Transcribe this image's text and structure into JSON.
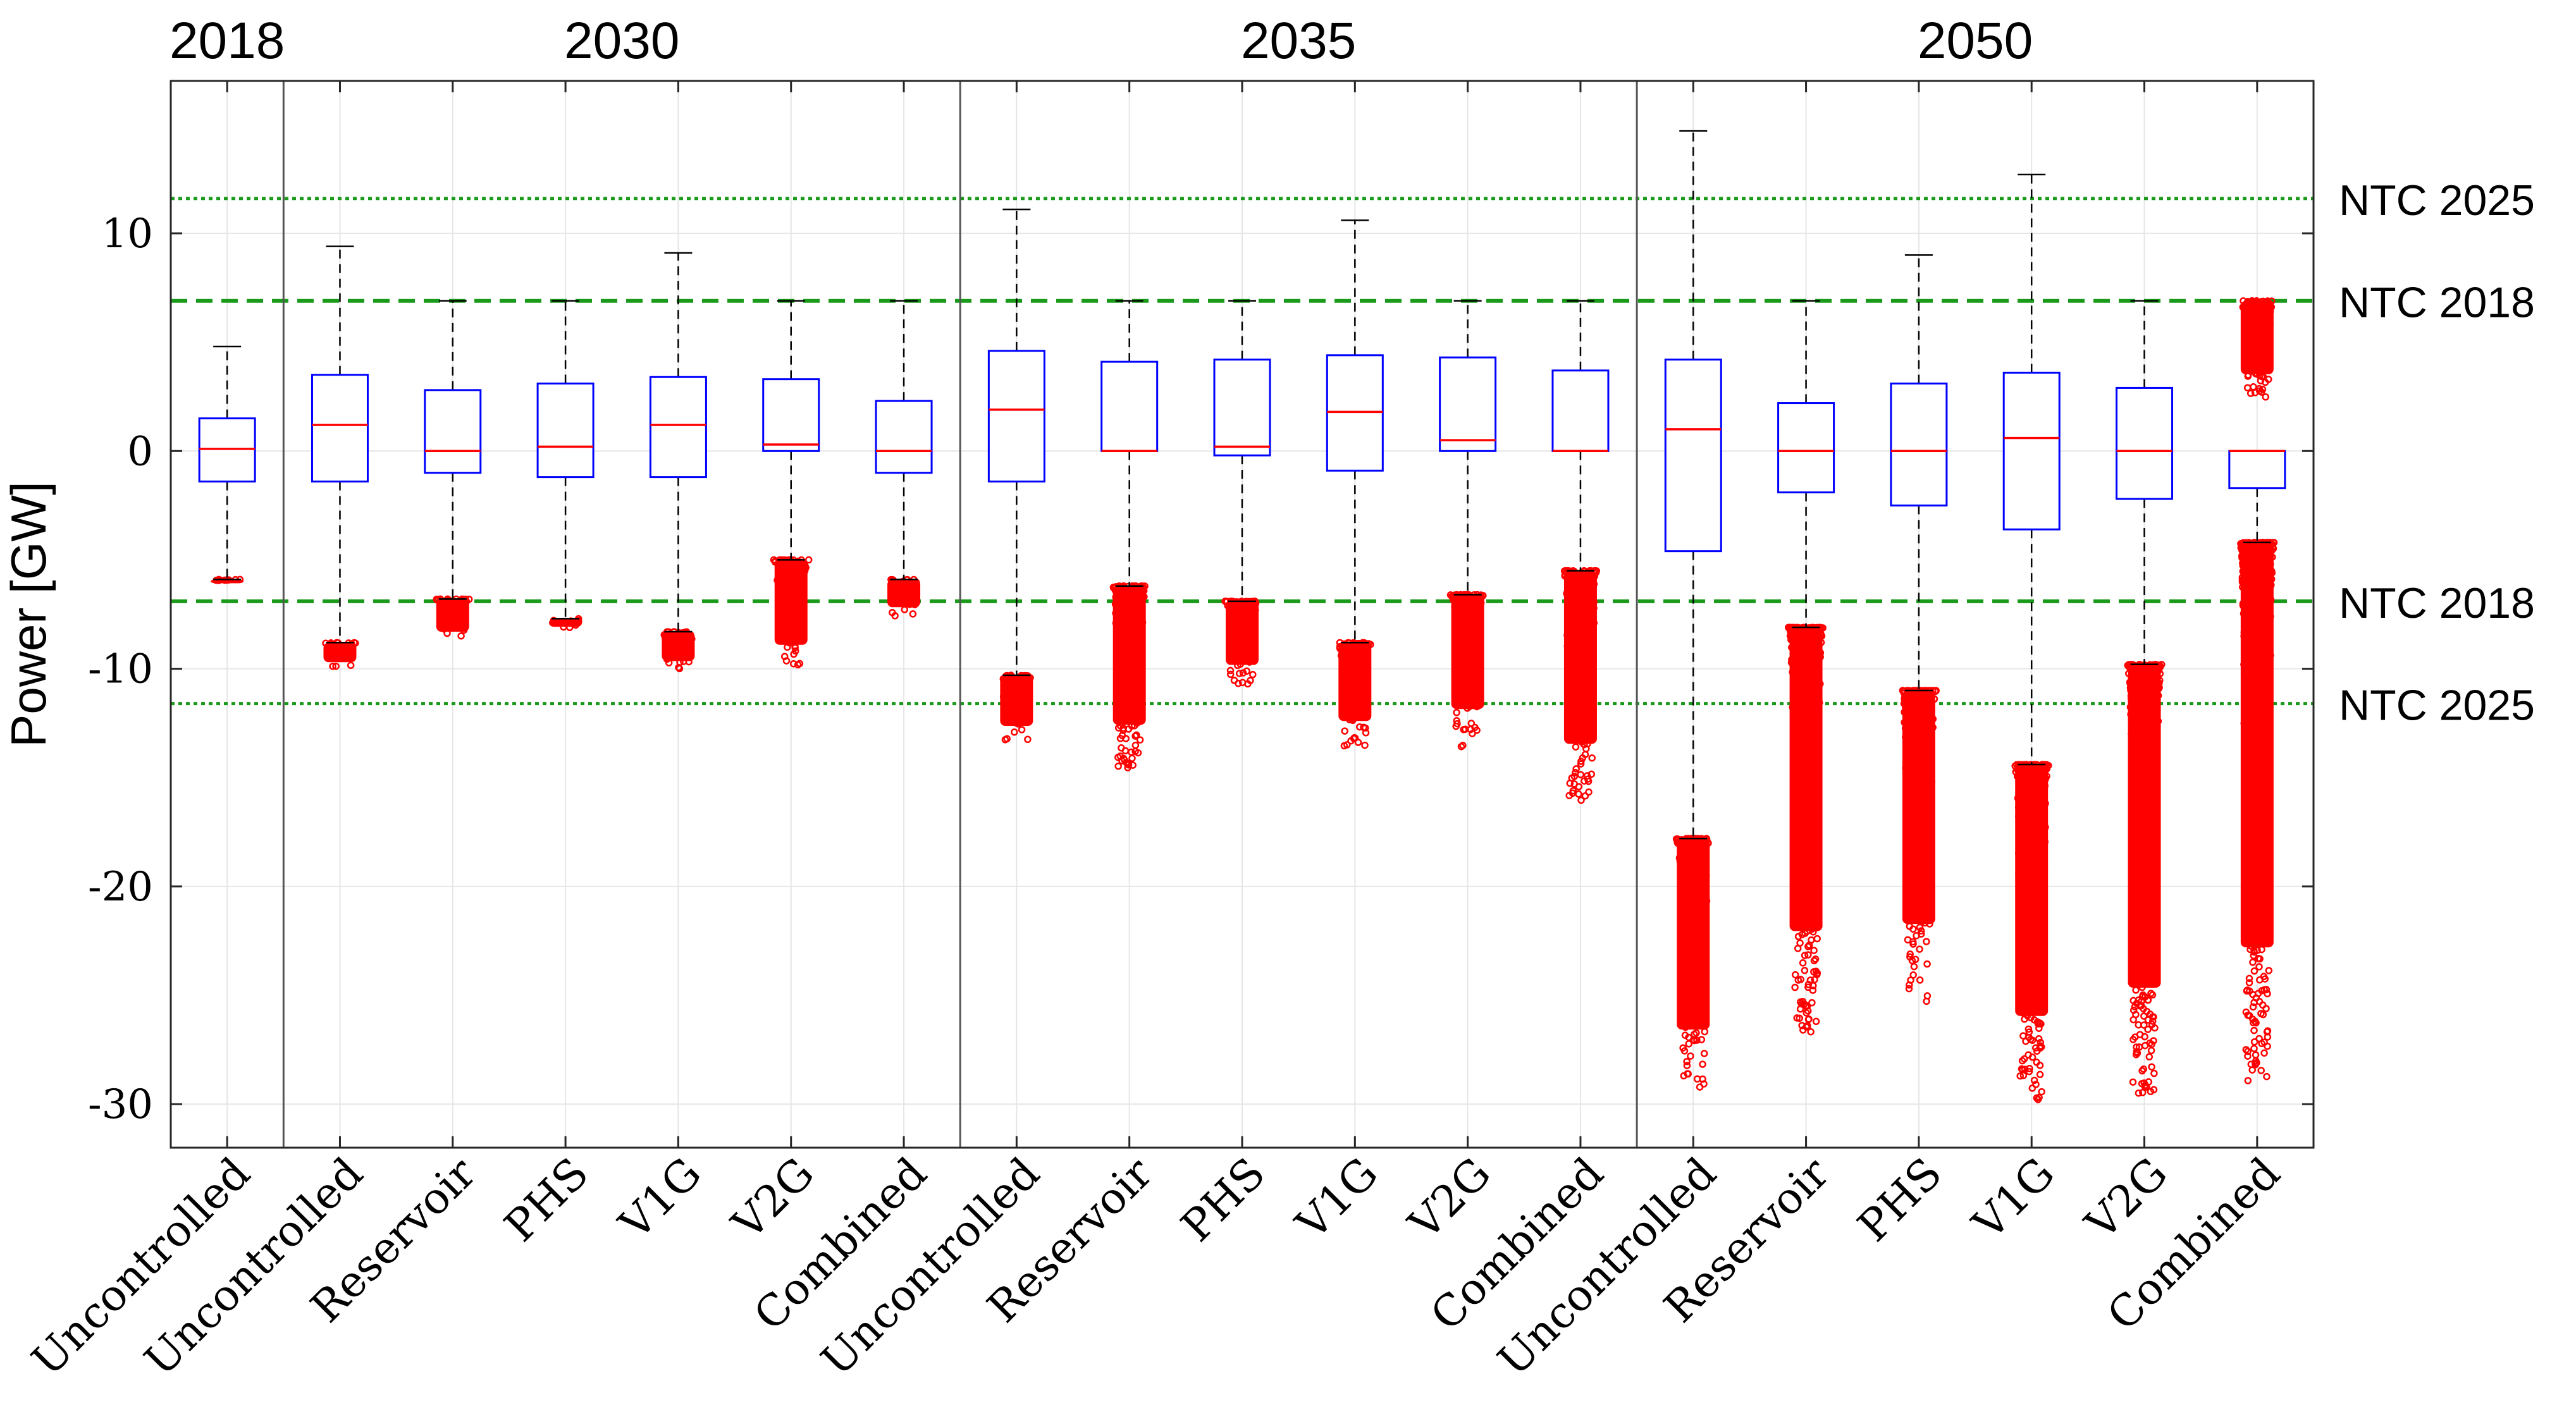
{
  "chart_data": {
    "type": "box",
    "title": "",
    "xlabel": "",
    "ylabel": "Power [GW]",
    "ylim": [
      -32,
      17
    ],
    "yticks": [
      10,
      0,
      -10,
      -20,
      -30
    ],
    "grid": true,
    "legend": "none",
    "groups": [
      {
        "label": "2018",
        "span": [
          1,
          1
        ]
      },
      {
        "label": "2030",
        "span": [
          2,
          7
        ]
      },
      {
        "label": "2035",
        "span": [
          8,
          13
        ]
      },
      {
        "label": "2050",
        "span": [
          14,
          19
        ]
      }
    ],
    "reference_lines": [
      {
        "label": "NTC 2025",
        "y": 11.6,
        "style": "dotted"
      },
      {
        "label": "NTC 2018",
        "y": 6.9,
        "style": "dashed"
      },
      {
        "label": "NTC 2018",
        "y": -6.9,
        "style": "dashed"
      },
      {
        "label": "NTC 2025",
        "y": -11.6,
        "style": "dotted"
      }
    ],
    "boxes": [
      {
        "category": "Uncontrolled",
        "q1": -1.4,
        "median": 0.1,
        "q3": 1.5,
        "whisker_low": -5.9,
        "whisker_high": 4.8,
        "outliers_low": [
          -6.0,
          -5.9
        ],
        "outliers_high": null
      },
      {
        "category": "Uncontrolled",
        "q1": -1.4,
        "median": 1.2,
        "q3": 3.5,
        "whisker_low": -8.8,
        "whisker_high": 9.4,
        "outliers_low": [
          -10.0,
          -8.8
        ],
        "outliers_high": null
      },
      {
        "category": "Reservoir",
        "q1": -1.0,
        "median": 0.0,
        "q3": 2.8,
        "whisker_low": -6.8,
        "whisker_high": 6.9,
        "outliers_low": [
          -8.8,
          -6.8
        ],
        "outliers_high": null
      },
      {
        "category": "PHS",
        "q1": -1.2,
        "median": 0.2,
        "q3": 3.1,
        "whisker_low": -7.7,
        "whisker_high": 6.9,
        "outliers_low": [
          -8.2,
          -7.7
        ],
        "outliers_high": null
      },
      {
        "category": "V1G",
        "q1": -1.2,
        "median": 1.2,
        "q3": 3.4,
        "whisker_low": -8.3,
        "whisker_high": 9.1,
        "outliers_low": [
          -10.1,
          -8.3
        ],
        "outliers_high": null
      },
      {
        "category": "V2G",
        "q1": 0.0,
        "median": 0.3,
        "q3": 3.3,
        "whisker_low": -5.0,
        "whisker_high": 6.9,
        "outliers_low": [
          -10.2,
          -5.0
        ],
        "outliers_high": null
      },
      {
        "category": "Combined",
        "q1": -1.0,
        "median": 0.0,
        "q3": 2.3,
        "whisker_low": -5.9,
        "whisker_high": 6.9,
        "outliers_low": [
          -7.6,
          -5.9
        ],
        "outliers_high": null
      },
      {
        "category": "Uncontrolled",
        "q1": -1.4,
        "median": 1.9,
        "q3": 4.6,
        "whisker_low": -10.3,
        "whisker_high": 11.1,
        "outliers_low": [
          -13.4,
          -10.3
        ],
        "outliers_high": null
      },
      {
        "category": "Reservoir",
        "q1": 0.0,
        "median": 0.0,
        "q3": 4.1,
        "whisker_low": -6.2,
        "whisker_high": 6.9,
        "outliers_low": [
          -14.7,
          -6.2
        ],
        "outliers_high": null
      },
      {
        "category": "PHS",
        "q1": -0.2,
        "median": 0.2,
        "q3": 4.2,
        "whisker_low": -6.9,
        "whisker_high": 6.9,
        "outliers_low": [
          -10.8,
          -6.9
        ],
        "outliers_high": null
      },
      {
        "category": "V1G",
        "q1": -0.9,
        "median": 1.8,
        "q3": 4.4,
        "whisker_low": -8.8,
        "whisker_high": 10.6,
        "outliers_low": [
          -13.6,
          -8.8
        ],
        "outliers_high": null
      },
      {
        "category": "V2G",
        "q1": 0.0,
        "median": 0.5,
        "q3": 4.3,
        "whisker_low": -6.6,
        "whisker_high": 6.9,
        "outliers_low": [
          -13.6,
          -6.6
        ],
        "outliers_high": null
      },
      {
        "category": "Combined",
        "q1": 0.0,
        "median": 0.0,
        "q3": 3.7,
        "whisker_low": -5.5,
        "whisker_high": 6.9,
        "outliers_low": [
          -16.1,
          -5.5
        ],
        "outliers_high": null
      },
      {
        "category": "Uncontrolled",
        "q1": -4.6,
        "median": 1.0,
        "q3": 4.2,
        "whisker_low": -17.8,
        "whisker_high": 14.7,
        "outliers_low": [
          -29.5,
          -17.8
        ],
        "outliers_high": null
      },
      {
        "category": "Reservoir",
        "q1": -1.9,
        "median": 0.0,
        "q3": 2.2,
        "whisker_low": -8.1,
        "whisker_high": 6.9,
        "outliers_low": [
          -26.7,
          -8.1
        ],
        "outliers_high": null
      },
      {
        "category": "PHS",
        "q1": -2.5,
        "median": 0.0,
        "q3": 3.1,
        "whisker_low": -11.0,
        "whisker_high": 9.0,
        "outliers_low": [
          -25.3,
          -11.0
        ],
        "outliers_high": null
      },
      {
        "category": "V1G",
        "q1": -3.6,
        "median": 0.6,
        "q3": 3.6,
        "whisker_low": -14.4,
        "whisker_high": 12.7,
        "outliers_low": [
          -29.8,
          -14.4
        ],
        "outliers_high": null
      },
      {
        "category": "V2G",
        "q1": -2.2,
        "median": 0.0,
        "q3": 2.9,
        "whisker_low": -9.8,
        "whisker_high": 6.9,
        "outliers_low": [
          -29.6,
          -9.8
        ],
        "outliers_high": null
      },
      {
        "category": "Combined",
        "q1": -1.7,
        "median": 0.0,
        "q3": 0.0,
        "whisker_low": -4.2,
        "whisker_high": 0.0,
        "outliers_low": [
          -29.0,
          -4.2
        ],
        "outliers_high": [
          2.4,
          6.9
        ]
      }
    ],
    "colors": {
      "box": "#0000ff",
      "median": "#ff0000",
      "whisker": "#000000",
      "outlier": "#ff0000",
      "reference": "#1a9a1a",
      "grid": "#e6e6e6",
      "axis": "#262626"
    }
  }
}
